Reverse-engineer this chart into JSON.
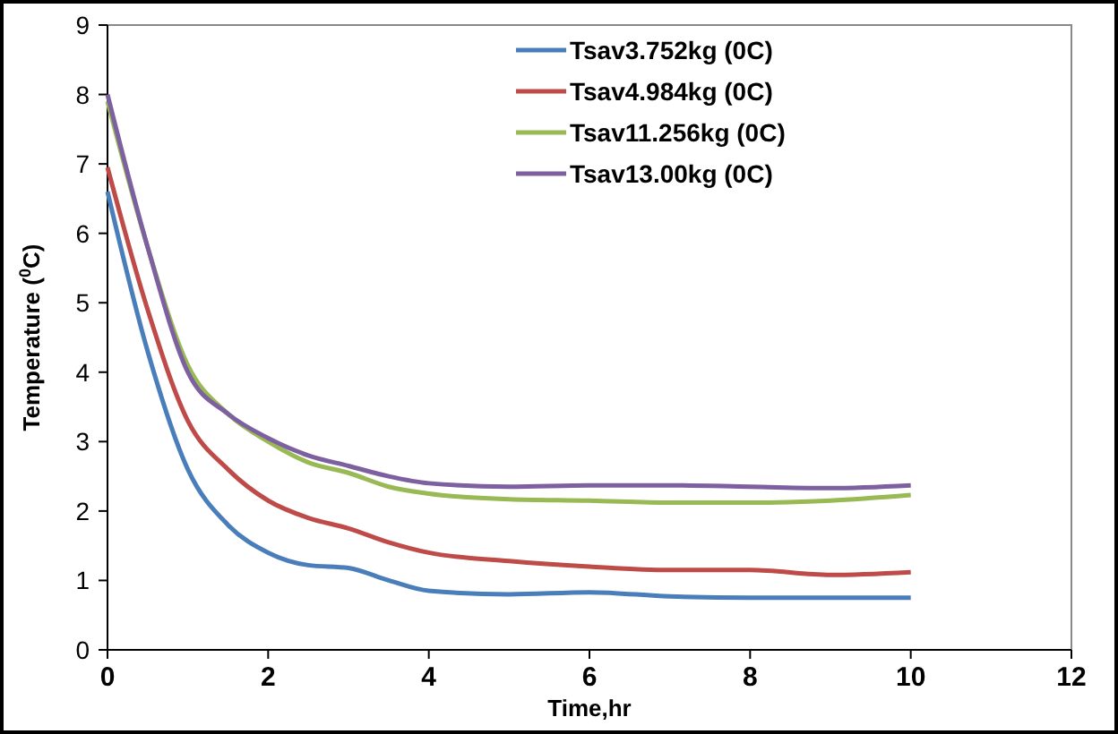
{
  "chart_data": {
    "type": "line",
    "xlabel": "Time,hr",
    "ylabel": "Temperature ($^{0}$C)",
    "x": [
      0,
      0.5,
      1,
      1.5,
      2,
      2.5,
      3,
      3.5,
      4,
      5,
      6,
      7,
      8,
      9,
      10
    ],
    "xlim": [
      0,
      12
    ],
    "xticks": [
      0,
      2,
      4,
      6,
      8,
      10,
      12
    ],
    "ylim": [
      0,
      9
    ],
    "yticks": [
      0,
      1,
      2,
      3,
      4,
      5,
      6,
      7,
      8,
      9
    ],
    "grid": false,
    "legend": "top right",
    "marker": "none",
    "line_style": "solid",
    "series": [
      {
        "name": "Tsav3.752kg (0C)",
        "color": "#4a7ebb",
        "values": [
          6.6,
          4.3,
          2.6,
          1.8,
          1.4,
          1.22,
          1.18,
          1.0,
          0.85,
          0.8,
          0.83,
          0.77,
          0.75,
          0.75,
          0.75
        ]
      },
      {
        "name": "Tsav4.984kg (0C)",
        "color": "#be4b48",
        "values": [
          6.95,
          4.9,
          3.3,
          2.6,
          2.15,
          1.9,
          1.75,
          1.55,
          1.4,
          1.28,
          1.2,
          1.15,
          1.15,
          1.08,
          1.12
        ]
      },
      {
        "name": "Tsav11.256kg (0C)",
        "color": "#98b954",
        "values": [
          7.9,
          5.8,
          4.1,
          3.4,
          3.0,
          2.7,
          2.55,
          2.35,
          2.25,
          2.17,
          2.15,
          2.12,
          2.12,
          2.15,
          2.23
        ]
      },
      {
        "name": "Tsav13.00kg (0C)",
        "color": "#7d60a0",
        "values": [
          8.0,
          5.8,
          4.0,
          3.4,
          3.05,
          2.8,
          2.65,
          2.5,
          2.4,
          2.35,
          2.37,
          2.37,
          2.35,
          2.33,
          2.37
        ]
      }
    ]
  }
}
